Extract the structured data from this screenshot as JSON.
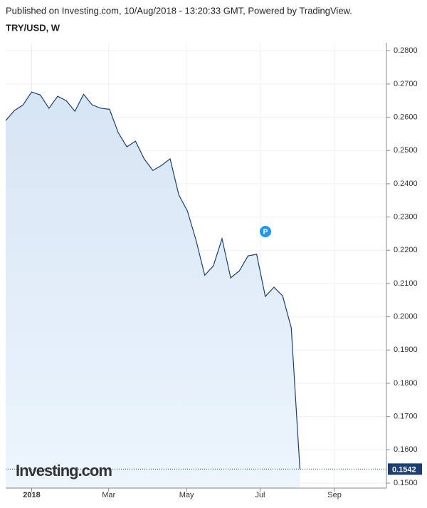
{
  "header": "Published on Investing.com, 10/Aug/2018 - 13:20:33 GMT, Powered by TradingView.",
  "chart_data": {
    "type": "area",
    "title": "TRY/USD, W",
    "watermark": "Investing.com",
    "x": [
      -3,
      -2,
      -1,
      0,
      1,
      2,
      3,
      4,
      5,
      6,
      7,
      8,
      9,
      10,
      11,
      12,
      13,
      14,
      15,
      16,
      17,
      18,
      19,
      20,
      21,
      22,
      23,
      24,
      25,
      26,
      27,
      28,
      29,
      30,
      31
    ],
    "series": [
      {
        "name": "TRY/USD",
        "color": "#1b3f73",
        "values": [
          0.259,
          0.262,
          0.2637,
          0.2676,
          0.2667,
          0.2627,
          0.2663,
          0.265,
          0.2618,
          0.2669,
          0.2637,
          0.2627,
          0.2624,
          0.2554,
          0.2511,
          0.2528,
          0.2475,
          0.244,
          0.2455,
          0.2475,
          0.2367,
          0.2318,
          0.223,
          0.2125,
          0.2153,
          0.2235,
          0.2117,
          0.2138,
          0.2183,
          0.2188,
          0.2061,
          0.2089,
          0.2063,
          0.1967,
          0.1542
        ]
      }
    ],
    "xlim": [
      -3,
      41
    ],
    "xticks": [
      {
        "value": 0,
        "label": "2018"
      },
      {
        "value": 8.9,
        "label": "Mar"
      },
      {
        "value": 17.9,
        "label": "May"
      },
      {
        "value": 26.4,
        "label": "Jul"
      },
      {
        "value": 35.0,
        "label": "Sep"
      }
    ],
    "ylim": [
      0.1485,
      0.2824
    ],
    "yticks": [
      {
        "value": 0.15,
        "label": "0.1500"
      },
      {
        "value": 0.16,
        "label": "0.1600"
      },
      {
        "value": 0.17,
        "label": "0.1700"
      },
      {
        "value": 0.18,
        "label": "0.1800"
      },
      {
        "value": 0.19,
        "label": "0.1900"
      },
      {
        "value": 0.2,
        "label": "0.2000"
      },
      {
        "value": 0.21,
        "label": "0.2100"
      },
      {
        "value": 0.22,
        "label": "0.2200"
      },
      {
        "value": 0.23,
        "label": "0.2300"
      },
      {
        "value": 0.24,
        "label": "0.2400"
      },
      {
        "value": 0.25,
        "label": "0.2500"
      },
      {
        "value": 0.26,
        "label": "0.2600"
      },
      {
        "value": 0.27,
        "label": "0.2700"
      },
      {
        "value": 0.28,
        "label": "0.2800"
      }
    ],
    "grid": true
  }
}
